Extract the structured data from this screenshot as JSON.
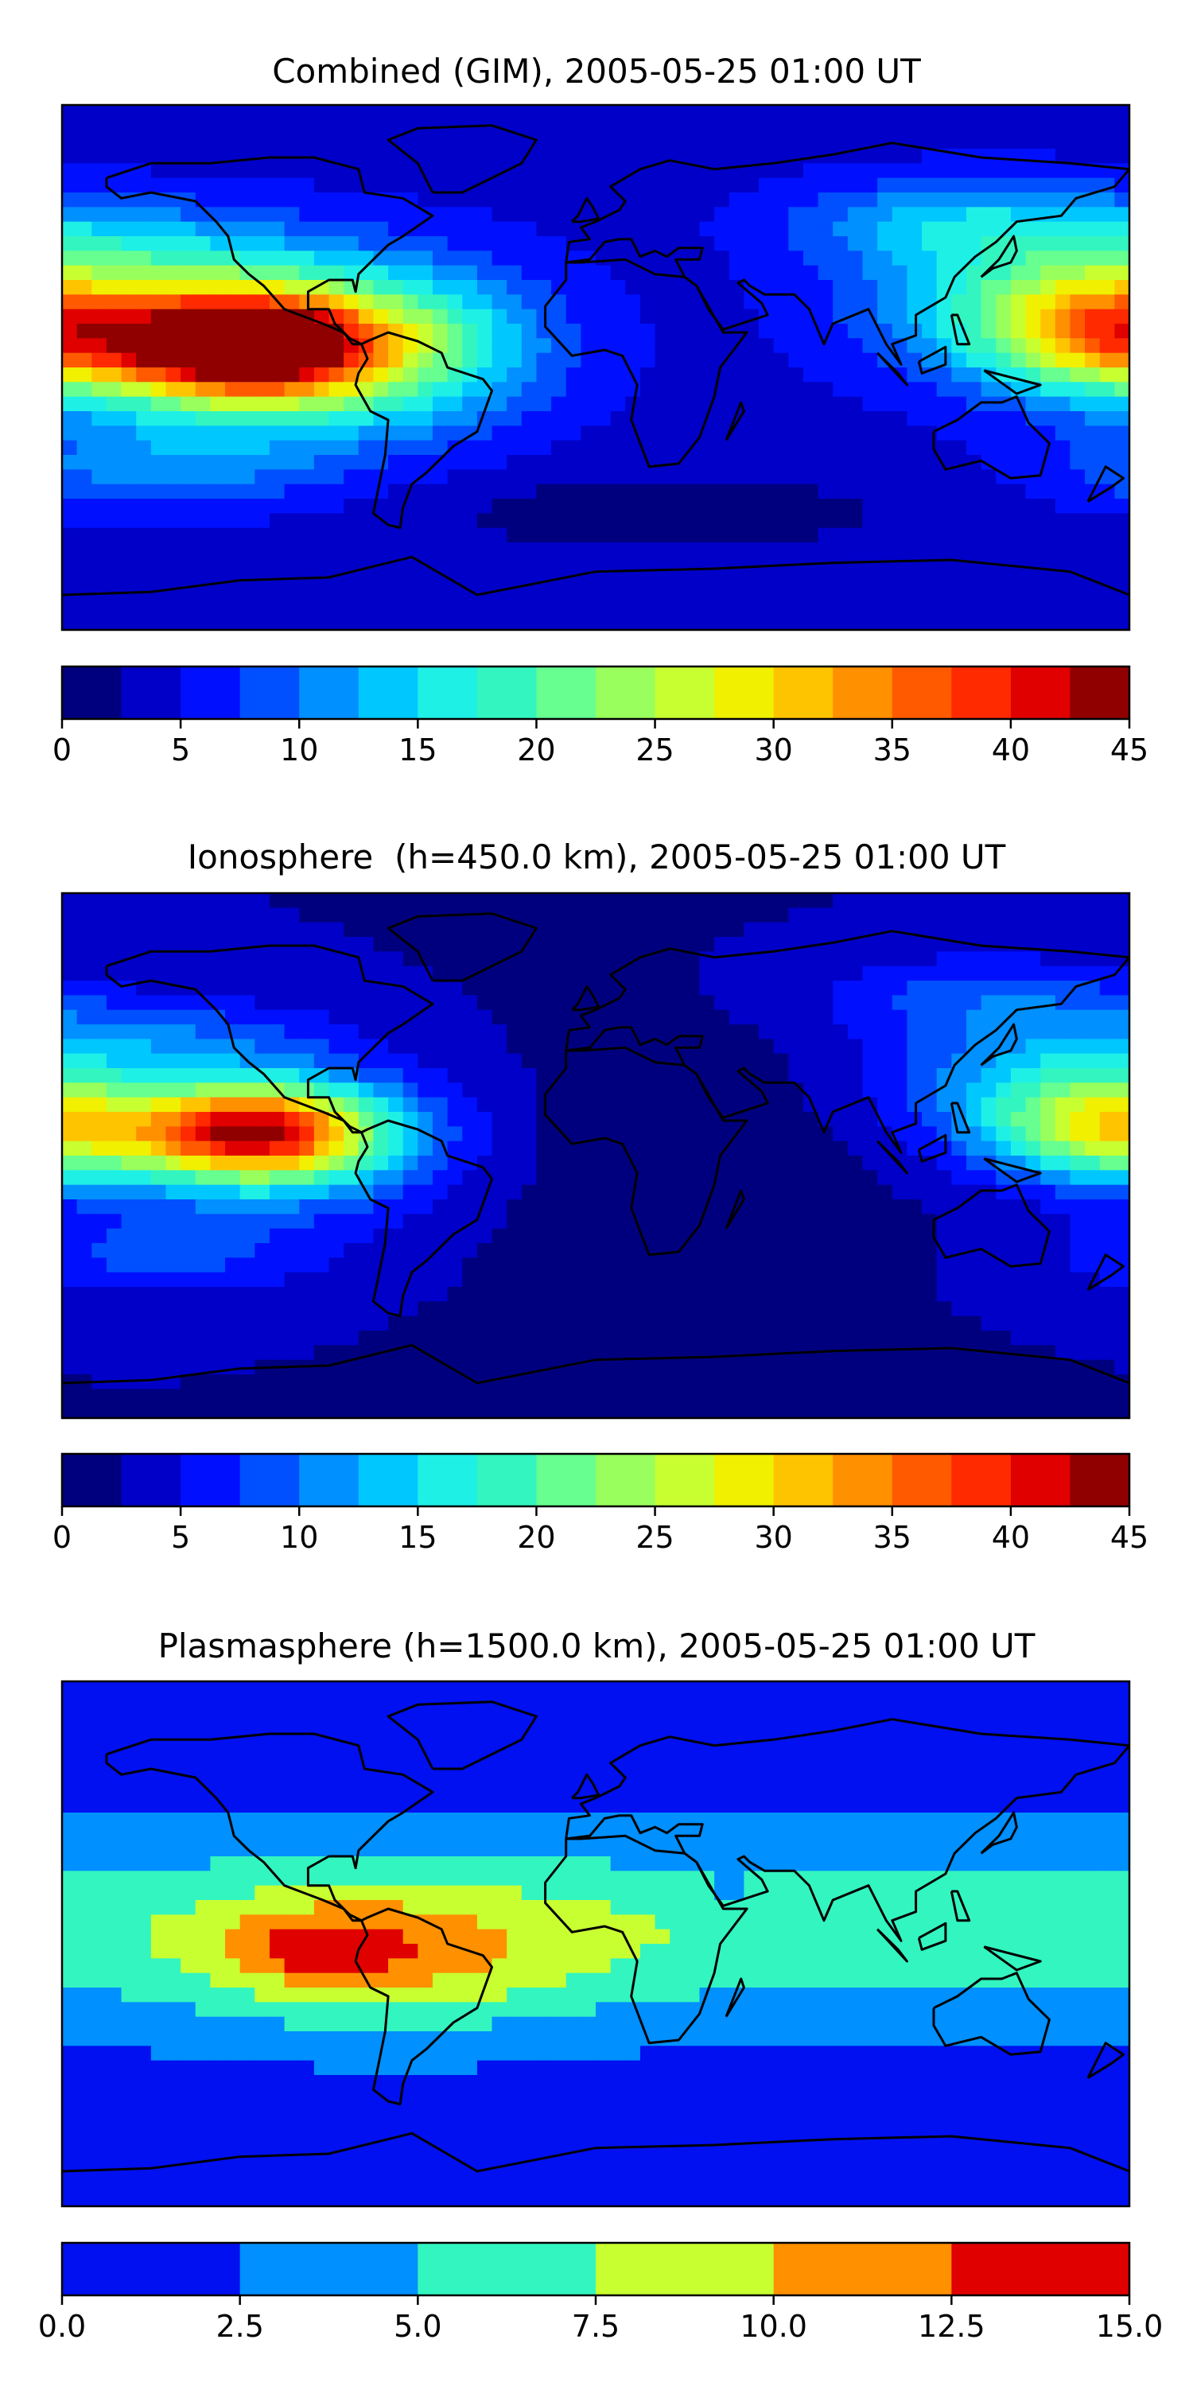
{
  "chart_data": [
    {
      "type": "heatmap",
      "title": "Combined (GIM), 2005-05-25 01:00 UT",
      "colorbar": {
        "ticks": [
          "0",
          "5",
          "10",
          "15",
          "20",
          "25",
          "30",
          "35",
          "40",
          "45"
        ],
        "tick_values": [
          0,
          5,
          10,
          15,
          20,
          25,
          30,
          35,
          40,
          45
        ],
        "levels": [
          0,
          2.5,
          5,
          7.5,
          10,
          12.5,
          15,
          17.5,
          20,
          22.5,
          25,
          27.5,
          30,
          32.5,
          35,
          37.5,
          40,
          42.5,
          45
        ],
        "colors": [
          "#00007f",
          "#0000c8",
          "#0010ff",
          "#0050ff",
          "#0090ff",
          "#00c8ff",
          "#1ef0e6",
          "#33f5c0",
          "#66ff90",
          "#99ff5c",
          "#c8ff30",
          "#f0f000",
          "#ffc400",
          "#ff9000",
          "#ff5a00",
          "#ff2a00",
          "#e00000",
          "#900000"
        ],
        "range": [
          0,
          45
        ]
      },
      "grid": "off",
      "map": "world equirectangular, coastlines",
      "features": [
        {
          "region": "Eastern Pacific near equator",
          "value": 42
        },
        {
          "region": "Western Pacific / Philippines",
          "value": 30
        },
        {
          "region": "Northern Atlantic / Europe / Africa",
          "value": 5
        },
        {
          "region": "Southern mid-latitudes",
          "value": 2
        }
      ]
    },
    {
      "type": "heatmap",
      "title": "Ionosphere  (h=450.0 km), 2005-05-25 01:00 UT",
      "colorbar": {
        "ticks": [
          "0",
          "5",
          "10",
          "15",
          "20",
          "25",
          "30",
          "35",
          "40",
          "45"
        ],
        "tick_values": [
          0,
          5,
          10,
          15,
          20,
          25,
          30,
          35,
          40,
          45
        ],
        "levels": [
          0,
          2.5,
          5,
          7.5,
          10,
          12.5,
          15,
          17.5,
          20,
          22.5,
          25,
          27.5,
          30,
          32.5,
          35,
          37.5,
          40,
          42.5,
          45
        ],
        "colors": [
          "#00007f",
          "#0000c8",
          "#0010ff",
          "#0050ff",
          "#0090ff",
          "#00c8ff",
          "#1ef0e6",
          "#33f5c0",
          "#66ff90",
          "#99ff5c",
          "#c8ff30",
          "#f0f000",
          "#ffc400",
          "#ff9000",
          "#ff5a00",
          "#ff2a00",
          "#e00000",
          "#900000"
        ],
        "range": [
          0,
          45
        ]
      },
      "grid": "off",
      "map": "world equirectangular, coastlines",
      "features": [
        {
          "region": "Eastern Pacific near equator",
          "value": 34
        },
        {
          "region": "Western Pacific",
          "value": 28
        },
        {
          "region": "Africa / Indian Ocean",
          "value": 2
        },
        {
          "region": "Southern mid-latitudes",
          "value": 3
        }
      ]
    },
    {
      "type": "heatmap",
      "title": "Plasmasphere (h=1500.0 km), 2005-05-25 01:00 UT",
      "colorbar": {
        "ticks": [
          "0.0",
          "2.5",
          "5.0",
          "7.5",
          "10.0",
          "12.5",
          "15.0"
        ],
        "tick_values": [
          0,
          2.5,
          5,
          7.5,
          10,
          12.5,
          15
        ],
        "levels": [
          0,
          2.5,
          5,
          7.5,
          10,
          12.5,
          15
        ],
        "colors": [
          "#0010f0",
          "#0090ff",
          "#33f5c0",
          "#c8ff30",
          "#ff9000",
          "#e00000"
        ],
        "range": [
          0,
          15
        ]
      },
      "grid": "off",
      "map": "world equirectangular, coastlines",
      "features": [
        {
          "region": "South America / eastern Pacific",
          "value": 11
        },
        {
          "region": "Equatorial belt",
          "value": 6
        },
        {
          "region": "High latitudes",
          "value": 1.5
        }
      ]
    }
  ]
}
